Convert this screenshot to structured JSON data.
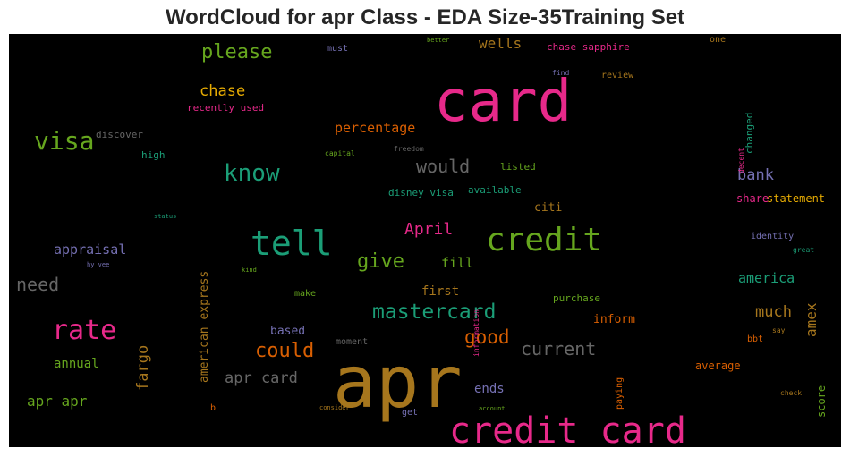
{
  "chart_data": {
    "type": "wordcloud",
    "title": "WordCloud for apr Class - EDA Size-35Training Set",
    "background": "#000000",
    "words": [
      {
        "id": "w-apr",
        "text": "apr",
        "color": "#A6761D",
        "weight": 1.0,
        "orientation": "horizontal"
      },
      {
        "id": "w-card",
        "text": "card",
        "color": "#E7298A",
        "weight": 0.9,
        "orientation": "horizontal"
      },
      {
        "id": "w-credit-card",
        "text": "credit card",
        "color": "#E7298A",
        "weight": 0.68,
        "orientation": "horizontal"
      },
      {
        "id": "w-credit",
        "text": "credit",
        "color": "#66A61E",
        "weight": 0.55,
        "orientation": "horizontal"
      },
      {
        "id": "w-tell",
        "text": "tell",
        "color": "#1B9E77",
        "weight": 0.55,
        "orientation": "horizontal"
      },
      {
        "id": "w-rate",
        "text": "rate",
        "color": "#E7298A",
        "weight": 0.45,
        "orientation": "horizontal"
      },
      {
        "id": "w-visa",
        "text": "visa",
        "color": "#66A61E",
        "weight": 0.42,
        "orientation": "horizontal"
      },
      {
        "id": "w-know",
        "text": "know",
        "color": "#1B9E77",
        "weight": 0.38,
        "orientation": "horizontal"
      },
      {
        "id": "w-mastercard",
        "text": "mastercard",
        "color": "#1B9E77",
        "weight": 0.34,
        "orientation": "horizontal"
      },
      {
        "id": "w-please",
        "text": "please",
        "color": "#66A61E",
        "weight": 0.32,
        "orientation": "horizontal"
      },
      {
        "id": "w-give",
        "text": "give",
        "color": "#66A61E",
        "weight": 0.32,
        "orientation": "horizontal"
      },
      {
        "id": "w-could",
        "text": "could",
        "color": "#D95F02",
        "weight": 0.32,
        "orientation": "horizontal"
      },
      {
        "id": "w-good",
        "text": "good",
        "color": "#D95F02",
        "weight": 0.3,
        "orientation": "horizontal"
      },
      {
        "id": "w-current",
        "text": "current",
        "color": "#666666",
        "weight": 0.28,
        "orientation": "horizontal"
      },
      {
        "id": "w-need",
        "text": "need",
        "color": "#666666",
        "weight": 0.28,
        "orientation": "horizontal"
      },
      {
        "id": "w-would",
        "text": "would",
        "color": "#666666",
        "weight": 0.27,
        "orientation": "horizontal"
      },
      {
        "id": "w-fargo",
        "text": "fargo",
        "color": "#A6761D",
        "weight": 0.25,
        "orientation": "vertical"
      },
      {
        "id": "w-much",
        "text": "much",
        "color": "#A6761D",
        "weight": 0.24,
        "orientation": "horizontal"
      },
      {
        "id": "w-apr-card",
        "text": "apr card",
        "color": "#666666",
        "weight": 0.24,
        "orientation": "horizontal"
      },
      {
        "id": "w-April",
        "text": "April",
        "color": "#E7298A",
        "weight": 0.23,
        "orientation": "horizontal"
      },
      {
        "id": "w-chase",
        "text": "chase",
        "color": "#E6AB02",
        "weight": 0.22,
        "orientation": "horizontal"
      },
      {
        "id": "w-apr-apr",
        "text": "apr apr",
        "color": "#66A61E",
        "weight": 0.22,
        "orientation": "horizontal"
      },
      {
        "id": "w-amex",
        "text": "amex",
        "color": "#A6761D",
        "weight": 0.22,
        "orientation": "vertical"
      },
      {
        "id": "w-bank",
        "text": "bank",
        "color": "#7570B3",
        "weight": 0.22,
        "orientation": "horizontal"
      },
      {
        "id": "w-wells",
        "text": "wells",
        "color": "#A6761D",
        "weight": 0.22,
        "orientation": "horizontal"
      },
      {
        "id": "w-appraisal",
        "text": "appraisal",
        "color": "#7570B3",
        "weight": 0.22,
        "orientation": "horizontal"
      },
      {
        "id": "w-america",
        "text": "america",
        "color": "#1B9E77",
        "weight": 0.22,
        "orientation": "horizontal"
      },
      {
        "id": "w-percentage",
        "text": "percentage",
        "color": "#D95F02",
        "weight": 0.21,
        "orientation": "horizontal"
      },
      {
        "id": "w-annual",
        "text": "annual",
        "color": "#66A61E",
        "weight": 0.2,
        "orientation": "horizontal"
      },
      {
        "id": "w-fill",
        "text": "fill",
        "color": "#66A61E",
        "weight": 0.2,
        "orientation": "horizontal"
      },
      {
        "id": "w-ends",
        "text": "ends",
        "color": "#7570B3",
        "weight": 0.19,
        "orientation": "horizontal"
      },
      {
        "id": "w-first",
        "text": "first",
        "color": "#A6761D",
        "weight": 0.18,
        "orientation": "horizontal"
      },
      {
        "id": "w-american-express",
        "text": "american express",
        "color": "#A6761D",
        "weight": 0.18,
        "orientation": "vertical"
      },
      {
        "id": "w-score",
        "text": "score",
        "color": "#66A61E",
        "weight": 0.17,
        "orientation": "vertical"
      },
      {
        "id": "w-citi",
        "text": "citi",
        "color": "#A6761D",
        "weight": 0.17,
        "orientation": "horizontal"
      },
      {
        "id": "w-based",
        "text": "based",
        "color": "#7570B3",
        "weight": 0.17,
        "orientation": "horizontal"
      },
      {
        "id": "w-inform",
        "text": "inform",
        "color": "#D95F02",
        "weight": 0.17,
        "orientation": "horizontal"
      },
      {
        "id": "w-average",
        "text": "average",
        "color": "#D95F02",
        "weight": 0.16,
        "orientation": "horizontal"
      },
      {
        "id": "w-chase-sapphire",
        "text": "chase sapphire",
        "color": "#E7298A",
        "weight": 0.15,
        "orientation": "horizontal"
      },
      {
        "id": "w-statement",
        "text": "statement",
        "color": "#E6AB02",
        "weight": 0.15,
        "orientation": "horizontal"
      },
      {
        "id": "w-share",
        "text": "share",
        "color": "#E7298A",
        "weight": 0.15,
        "orientation": "horizontal"
      },
      {
        "id": "w-discover",
        "text": "discover",
        "color": "#666666",
        "weight": 0.14,
        "orientation": "horizontal"
      },
      {
        "id": "w-recently-used",
        "text": "recently used",
        "color": "#E7298A",
        "weight": 0.14,
        "orientation": "horizontal"
      },
      {
        "id": "w-changed",
        "text": "changed",
        "color": "#1B9E77",
        "weight": 0.14,
        "orientation": "vertical"
      },
      {
        "id": "w-listed",
        "text": "listed",
        "color": "#66A61E",
        "weight": 0.14,
        "orientation": "horizontal"
      },
      {
        "id": "w-purchase",
        "text": "purchase",
        "color": "#66A61E",
        "weight": 0.14,
        "orientation": "horizontal"
      },
      {
        "id": "w-disney-visa",
        "text": "disney visa",
        "color": "#1B9E77",
        "weight": 0.13,
        "orientation": "horizontal"
      },
      {
        "id": "w-available",
        "text": "available",
        "color": "#1B9E77",
        "weight": 0.13,
        "orientation": "horizontal"
      },
      {
        "id": "w-identity",
        "text": "identity",
        "color": "#7570B3",
        "weight": 0.13,
        "orientation": "horizontal"
      },
      {
        "id": "w-high",
        "text": "high",
        "color": "#1B9E77",
        "weight": 0.13,
        "orientation": "horizontal"
      },
      {
        "id": "w-moment",
        "text": "moment",
        "color": "#666666",
        "weight": 0.13,
        "orientation": "horizontal"
      },
      {
        "id": "w-review",
        "text": "review",
        "color": "#A6761D",
        "weight": 0.13,
        "orientation": "horizontal"
      },
      {
        "id": "w-make",
        "text": "make",
        "color": "#66A61E",
        "weight": 0.12,
        "orientation": "horizontal"
      },
      {
        "id": "w-one",
        "text": "one",
        "color": "#A6761D",
        "weight": 0.12,
        "orientation": "horizontal"
      },
      {
        "id": "w-must",
        "text": "must",
        "color": "#7570B3",
        "weight": 0.12,
        "orientation": "horizontal"
      },
      {
        "id": "w-paying",
        "text": "paying",
        "color": "#D95F02",
        "weight": 0.11,
        "orientation": "vertical"
      },
      {
        "id": "w-ends-get",
        "text": "get",
        "color": "#7570B3",
        "weight": 0.11,
        "orientation": "horizontal"
      },
      {
        "id": "w-bbt",
        "text": "bbt",
        "color": "#D95F02",
        "weight": 0.11,
        "orientation": "horizontal"
      },
      {
        "id": "w-b",
        "text": "b",
        "color": "#D95F02",
        "weight": 0.11,
        "orientation": "horizontal"
      },
      {
        "id": "w-information",
        "text": "information",
        "color": "#E7298A",
        "weight": 0.1,
        "orientation": "vertical"
      },
      {
        "id": "w-find",
        "text": "find",
        "color": "#7570B3",
        "weight": 0.1,
        "orientation": "horizontal"
      },
      {
        "id": "w-decent",
        "text": "decent",
        "color": "#E7298A",
        "weight": 0.09,
        "orientation": "vertical"
      },
      {
        "id": "w-say",
        "text": "say",
        "color": "#A6761D",
        "weight": 0.09,
        "orientation": "horizontal"
      },
      {
        "id": "w-check",
        "text": "check",
        "color": "#A6761D",
        "weight": 0.09,
        "orientation": "horizontal"
      },
      {
        "id": "w-great",
        "text": "great",
        "color": "#1B9E77",
        "weight": 0.08,
        "orientation": "horizontal"
      },
      {
        "id": "w-capital",
        "text": "capital",
        "color": "#66A61E",
        "weight": 0.08,
        "orientation": "horizontal"
      },
      {
        "id": "w-freedom",
        "text": "freedom",
        "color": "#666666",
        "weight": 0.08,
        "orientation": "horizontal"
      },
      {
        "id": "w-better",
        "text": "better",
        "color": "#66A61E",
        "weight": 0.08,
        "orientation": "horizontal"
      },
      {
        "id": "w-status",
        "text": "status",
        "color": "#1B9E77",
        "weight": 0.08,
        "orientation": "horizontal"
      },
      {
        "id": "w-hy-vee",
        "text": "hy vee",
        "color": "#7570B3",
        "weight": 0.08,
        "orientation": "horizontal"
      },
      {
        "id": "w-kind",
        "text": "kind",
        "color": "#66A61E",
        "weight": 0.08,
        "orientation": "horizontal"
      },
      {
        "id": "w-consider",
        "text": "consider",
        "color": "#A6761D",
        "weight": 0.08,
        "orientation": "horizontal"
      },
      {
        "id": "w-account",
        "text": "account",
        "color": "#66A61E",
        "weight": 0.08,
        "orientation": "horizontal"
      }
    ]
  }
}
